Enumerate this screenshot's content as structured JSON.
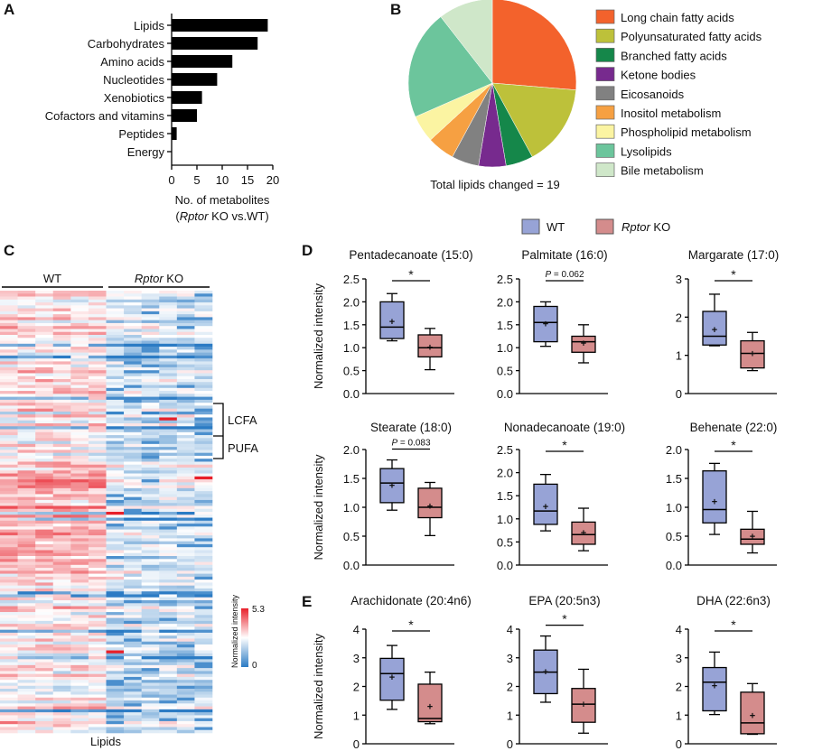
{
  "panels": {
    "a": "A",
    "b": "B",
    "c": "C",
    "d": "D",
    "e": "E"
  },
  "colors": {
    "wt": "#97a3d6",
    "ko": "#d48c8c",
    "heat_low": "#2b7bc4",
    "heat_mid": "#ffffff",
    "heat_high": "#e8202a"
  },
  "chart_data": [
    {
      "type": "bar",
      "orientation": "horizontal",
      "categories": [
        "Lipids",
        "Carbohydrates",
        "Amino acids",
        "Nucleotides",
        "Xenobiotics",
        "Cofactors and vitamins",
        "Peptides",
        "Energy"
      ],
      "values": [
        19,
        17,
        12,
        9,
        6,
        5,
        1,
        0
      ],
      "xlabel_line1": "No. of metabolites",
      "xlabel_italic": "Rptor",
      "xlabel_open": "(",
      "xlabel_rest": " KO vs.WT)",
      "xlim": [
        0,
        20
      ],
      "xticks": [
        "0",
        "5",
        "10",
        "15",
        "20"
      ],
      "color": "#000000"
    },
    {
      "type": "pie",
      "categories": [
        "Long chain fatty acids",
        "Polyunsaturated fatty acids",
        "Branched fatty acids",
        "Ketone bodies",
        "Eicosanoids",
        "Inositol metabolism",
        "Phospholipid metabolism",
        "Lysolipids",
        "Bile metabolism"
      ],
      "values": [
        5,
        3,
        1,
        1,
        1,
        1,
        1,
        4,
        2
      ],
      "colors": [
        "#f3622c",
        "#bdc13a",
        "#15874a",
        "#772a8e",
        "#818181",
        "#f6a042",
        "#fbf4a2",
        "#6cc59c",
        "#cfe7c9"
      ],
      "caption": "Total lipids changed = 19",
      "legend": "right"
    },
    {
      "type": "heatmap",
      "groups": [
        "WT",
        "Rptor KO"
      ],
      "group_ko_italic": "Rptor",
      "group_ko_rest": " KO",
      "xlabel": "Lipids",
      "colorbar_label": "Normalized intensity",
      "colorbar_range": [
        0,
        5.3
      ],
      "colorbar_ticks": [
        "5.3",
        "0"
      ],
      "brackets": [
        "LCFA",
        "PUFA"
      ]
    },
    {
      "type": "box",
      "legend": {
        "wt": "WT",
        "ko_italic": "Rptor",
        "ko_rest": " KO"
      },
      "ylabel": "Normalized intensity",
      "stats_order": [
        "min",
        "q1",
        "median",
        "q3",
        "max",
        "mean"
      ],
      "plots": [
        {
          "title": "Pentadecanoate (15:0)",
          "ylim": [
            0,
            2.5
          ],
          "yticks": [
            "0.0",
            "0.5",
            "1.0",
            "1.5",
            "2.0",
            "2.5"
          ],
          "sig": "*",
          "wt": [
            1.15,
            1.2,
            1.45,
            2.0,
            2.18,
            1.57
          ],
          "ko": [
            0.52,
            0.8,
            1.0,
            1.28,
            1.42,
            1.01
          ]
        },
        {
          "title": "Palmitate (16:0)",
          "ylim": [
            0,
            2.5
          ],
          "yticks": [
            "0.0",
            "0.5",
            "1.0",
            "1.5",
            "2.0",
            "2.5"
          ],
          "sig_p": "P",
          "sig": " = 0.062",
          "wt": [
            1.03,
            1.13,
            1.55,
            1.9,
            2.0,
            1.53
          ],
          "ko": [
            0.67,
            0.9,
            1.13,
            1.25,
            1.5,
            1.1
          ]
        },
        {
          "title": "Margarate (17:0)",
          "ylim": [
            0,
            3
          ],
          "yticks": [
            "0",
            "1",
            "2",
            "3"
          ],
          "sig": "*",
          "wt": [
            1.25,
            1.27,
            1.5,
            2.15,
            2.6,
            1.68
          ],
          "ko": [
            0.6,
            0.67,
            1.05,
            1.38,
            1.6,
            1.05
          ]
        },
        {
          "title": "Stearate (18:0)",
          "ylim": [
            0,
            2.0
          ],
          "yticks": [
            "0.0",
            "0.5",
            "1.0",
            "1.5",
            "2.0"
          ],
          "sig_p": "P",
          "sig": " = 0.083",
          "wt": [
            0.95,
            1.08,
            1.42,
            1.67,
            1.82,
            1.38
          ],
          "ko": [
            0.51,
            0.82,
            1.0,
            1.33,
            1.43,
            1.02
          ]
        },
        {
          "title": "Nonadecanoate (19:0)",
          "ylim": [
            0,
            2.5
          ],
          "yticks": [
            "0.0",
            "0.5",
            "1.0",
            "1.5",
            "2.0",
            "2.5"
          ],
          "sig": "*",
          "wt": [
            0.74,
            0.88,
            1.17,
            1.75,
            1.96,
            1.27
          ],
          "ko": [
            0.31,
            0.45,
            0.66,
            0.93,
            1.23,
            0.7
          ]
        },
        {
          "title": "Behenate (22:0)",
          "ylim": [
            0,
            2.0
          ],
          "yticks": [
            "0.0",
            "0.5",
            "1.0",
            "1.5",
            "2.0"
          ],
          "sig": "*",
          "wt": [
            0.53,
            0.73,
            0.96,
            1.63,
            1.76,
            1.1
          ],
          "ko": [
            0.21,
            0.36,
            0.45,
            0.62,
            0.93,
            0.5
          ]
        },
        {
          "title": "Arachidonate (20:4n6)",
          "ylim": [
            0,
            4
          ],
          "yticks": [
            "0",
            "1",
            "2",
            "3",
            "4"
          ],
          "sig": "*",
          "wt": [
            1.2,
            1.52,
            2.45,
            2.98,
            3.43,
            2.33
          ],
          "ko": [
            0.7,
            0.77,
            0.88,
            2.08,
            2.5,
            1.3
          ]
        },
        {
          "title": "EPA (20:5n3)",
          "ylim": [
            0,
            4
          ],
          "yticks": [
            "0",
            "1",
            "2",
            "3",
            "4"
          ],
          "sig": "*",
          "wt": [
            1.45,
            1.75,
            2.5,
            3.27,
            3.76,
            2.52
          ],
          "ko": [
            0.37,
            0.75,
            1.38,
            1.93,
            2.6,
            1.38
          ]
        },
        {
          "title": "DHA (22:6n3)",
          "ylim": [
            0,
            4
          ],
          "yticks": [
            "0",
            "1",
            "2",
            "3",
            "4"
          ],
          "sig": "*",
          "wt": [
            1.02,
            1.15,
            2.15,
            2.66,
            3.2,
            2.03
          ],
          "ko": [
            0.33,
            0.35,
            0.73,
            1.8,
            2.1,
            1.0
          ]
        }
      ]
    }
  ]
}
